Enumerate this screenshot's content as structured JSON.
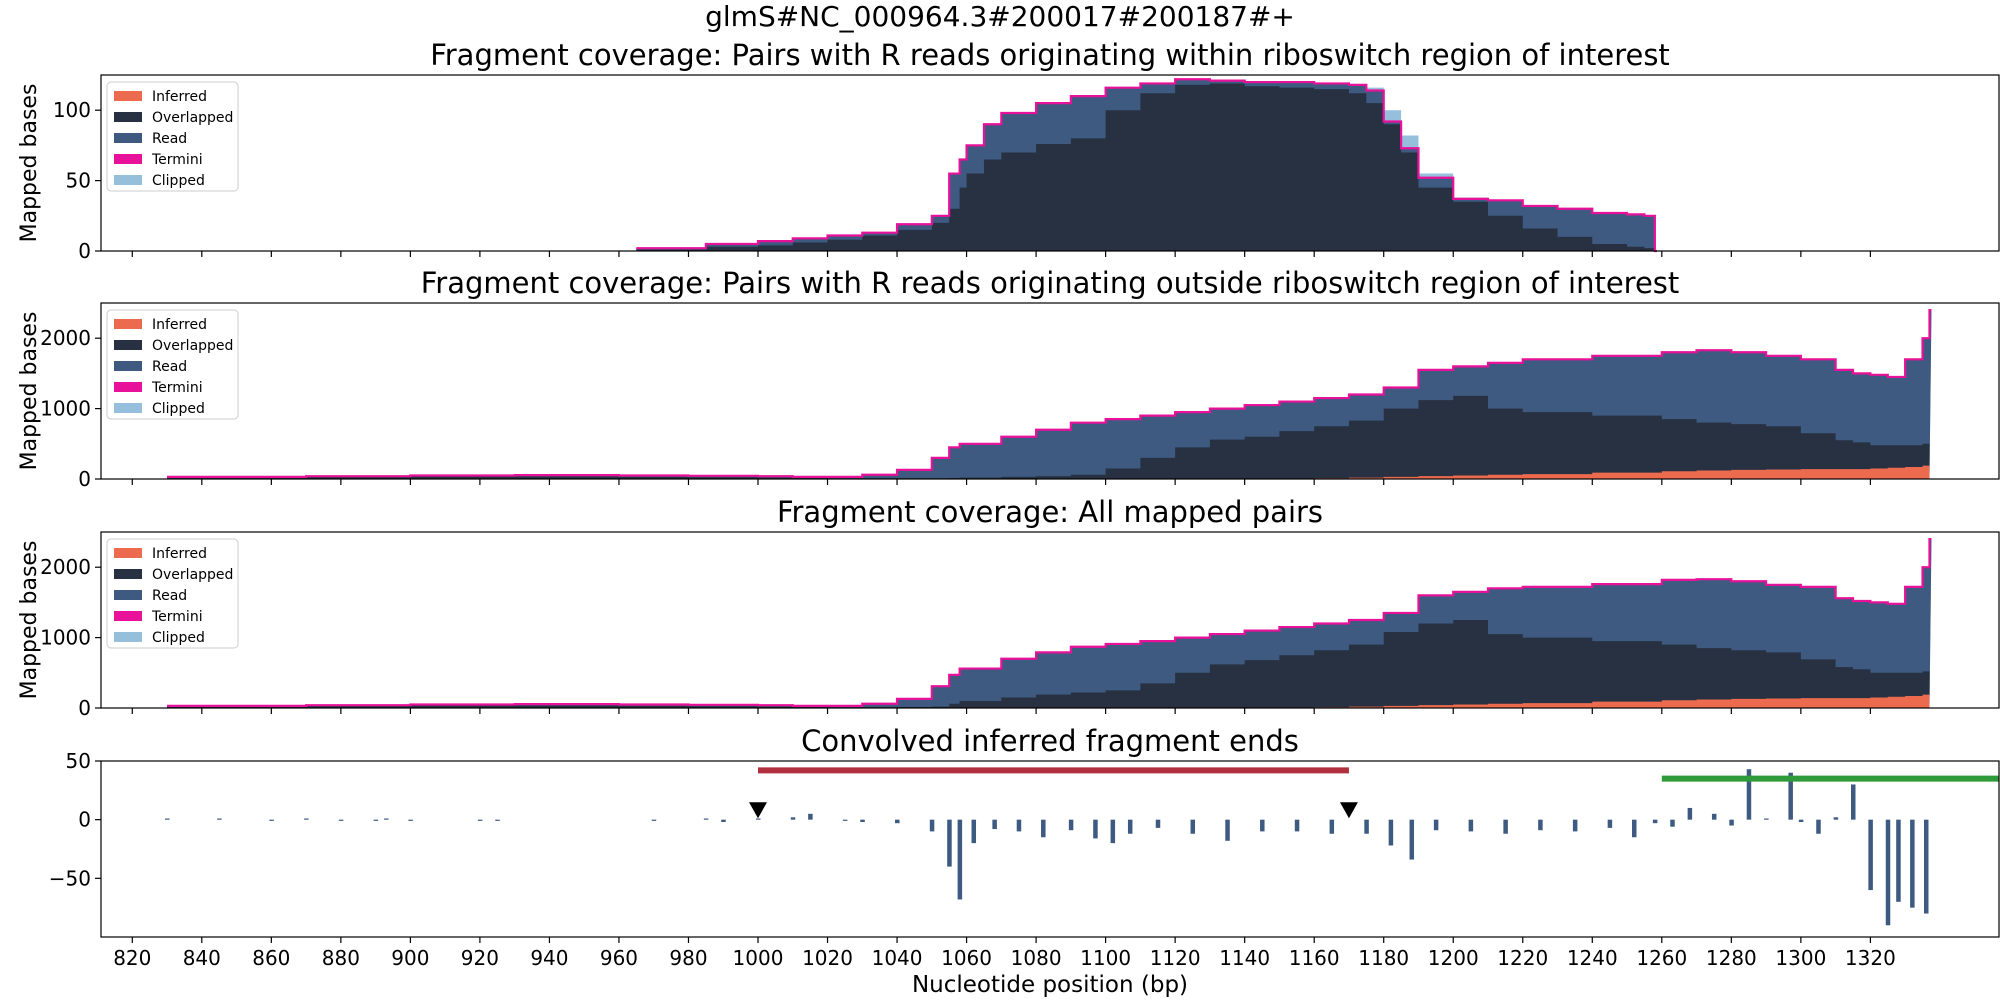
{
  "suptitle": "glmS#NC_000964.3#200017#200187#+",
  "colors": {
    "inferred": "#ec6b4e",
    "overlapped": "#273142",
    "read": "#3e5a80",
    "termini": "#e8119a",
    "clipped": "#96bfdb",
    "convolved": "#3e5a80",
    "riboswitch_bar": "#b0303f",
    "green_bar": "#2e9a3a",
    "marker": "#000000"
  },
  "legend": [
    "Inferred",
    "Overlapped",
    "Read",
    "Termini",
    "Clipped"
  ],
  "xaxis": {
    "label": "Nucleotide position (bp)",
    "range": [
      811,
      1357
    ],
    "ticks": [
      820,
      840,
      860,
      880,
      900,
      920,
      940,
      960,
      980,
      1000,
      1020,
      1040,
      1060,
      1080,
      1100,
      1120,
      1140,
      1160,
      1180,
      1200,
      1220,
      1240,
      1260,
      1280,
      1300,
      1320
    ]
  },
  "chart_data": [
    {
      "type": "area",
      "title": "Fragment coverage: Pairs with R reads originating within riboswitch region of interest",
      "ylabel": "Mapped bases",
      "ylim": [
        0,
        125
      ],
      "yticks": [
        0,
        50,
        100
      ],
      "legend_position": "upper-left",
      "x": [
        965,
        985,
        1000,
        1010,
        1020,
        1030,
        1040,
        1050,
        1055,
        1058,
        1060,
        1065,
        1070,
        1080,
        1090,
        1100,
        1110,
        1120,
        1130,
        1140,
        1150,
        1160,
        1170,
        1175,
        1180,
        1185,
        1190,
        1200,
        1210,
        1220,
        1230,
        1240,
        1250,
        1255,
        1258
      ],
      "series": [
        {
          "name": "Overlapped",
          "values": [
            1,
            3,
            4,
            6,
            8,
            11,
            15,
            20,
            30,
            45,
            55,
            65,
            70,
            76,
            80,
            100,
            112,
            118,
            119,
            117,
            116,
            115,
            112,
            105,
            90,
            70,
            45,
            35,
            25,
            16,
            10,
            5,
            3,
            2,
            0
          ]
        },
        {
          "name": "Read",
          "values": [
            2,
            5,
            7,
            9,
            11,
            13,
            19,
            25,
            55,
            65,
            75,
            90,
            98,
            105,
            110,
            116,
            119,
            122,
            121,
            120,
            120,
            119,
            118,
            114,
            92,
            73,
            52,
            37,
            36,
            32,
            30,
            27,
            26,
            25,
            0
          ]
        },
        {
          "name": "Clipped",
          "values": [
            2,
            5,
            7,
            9,
            11,
            13,
            19,
            25,
            55,
            65,
            75,
            90,
            98,
            105,
            110,
            116,
            119,
            122,
            121,
            120,
            120,
            119,
            118,
            116,
            100,
            82,
            55,
            38,
            36,
            32,
            30,
            27,
            26,
            25,
            0
          ]
        }
      ]
    },
    {
      "type": "area",
      "title": "Fragment coverage: Pairs with R reads originating outside riboswitch region of interest",
      "ylabel": "Mapped bases",
      "ylim": [
        0,
        2500
      ],
      "yticks": [
        0,
        1000,
        2000
      ],
      "legend_position": "upper-left",
      "x": [
        830,
        870,
        900,
        930,
        960,
        980,
        1000,
        1010,
        1020,
        1030,
        1040,
        1050,
        1055,
        1058,
        1070,
        1080,
        1090,
        1100,
        1110,
        1120,
        1130,
        1140,
        1150,
        1160,
        1170,
        1180,
        1190,
        1200,
        1210,
        1220,
        1240,
        1260,
        1270,
        1280,
        1290,
        1300,
        1310,
        1315,
        1320,
        1325,
        1330,
        1335,
        1337
      ],
      "series": [
        {
          "name": "Inferred",
          "values": [
            0,
            0,
            0,
            0,
            0,
            0,
            0,
            0,
            0,
            0,
            0,
            0,
            0,
            0,
            0,
            0,
            0,
            0,
            0,
            0,
            0,
            0,
            0,
            10,
            20,
            30,
            40,
            50,
            60,
            70,
            90,
            110,
            120,
            130,
            135,
            140,
            140,
            140,
            150,
            160,
            170,
            190,
            0
          ]
        },
        {
          "name": "Overlapped",
          "values": [
            20,
            30,
            35,
            35,
            30,
            25,
            20,
            15,
            10,
            10,
            10,
            10,
            15,
            20,
            30,
            40,
            60,
            150,
            300,
            450,
            560,
            600,
            680,
            750,
            830,
            1000,
            1120,
            1180,
            1000,
            950,
            900,
            850,
            800,
            780,
            750,
            650,
            550,
            520,
            480,
            480,
            480,
            500,
            0
          ]
        },
        {
          "name": "Read",
          "values": [
            30,
            40,
            50,
            55,
            50,
            45,
            40,
            30,
            30,
            60,
            130,
            300,
            450,
            500,
            600,
            700,
            800,
            850,
            900,
            950,
            1000,
            1050,
            1100,
            1150,
            1200,
            1300,
            1550,
            1600,
            1650,
            1700,
            1750,
            1800,
            1830,
            1800,
            1750,
            1700,
            1550,
            1500,
            1480,
            1450,
            1700,
            2000,
            2400
          ]
        },
        {
          "name": "Clipped",
          "values": [
            30,
            40,
            50,
            55,
            50,
            45,
            40,
            30,
            30,
            60,
            130,
            300,
            450,
            500,
            600,
            700,
            800,
            850,
            900,
            950,
            1000,
            1050,
            1100,
            1150,
            1200,
            1300,
            1550,
            1600,
            1650,
            1700,
            1750,
            1800,
            1830,
            1800,
            1750,
            1700,
            1550,
            1500,
            1480,
            1450,
            1700,
            2000,
            2400
          ]
        }
      ]
    },
    {
      "type": "area",
      "title": "Fragment coverage: All mapped pairs",
      "ylabel": "Mapped bases",
      "ylim": [
        0,
        2500
      ],
      "yticks": [
        0,
        1000,
        2000
      ],
      "legend_position": "upper-left",
      "x": [
        830,
        870,
        900,
        930,
        960,
        980,
        1000,
        1010,
        1020,
        1030,
        1040,
        1050,
        1055,
        1058,
        1070,
        1080,
        1090,
        1100,
        1110,
        1120,
        1130,
        1140,
        1150,
        1160,
        1170,
        1180,
        1190,
        1200,
        1210,
        1220,
        1240,
        1260,
        1270,
        1280,
        1290,
        1300,
        1310,
        1315,
        1320,
        1325,
        1330,
        1335,
        1337
      ],
      "series": [
        {
          "name": "Inferred",
          "values": [
            0,
            0,
            0,
            0,
            0,
            0,
            0,
            0,
            0,
            0,
            0,
            0,
            0,
            0,
            0,
            0,
            0,
            0,
            0,
            0,
            0,
            0,
            0,
            10,
            20,
            30,
            40,
            50,
            60,
            70,
            90,
            110,
            120,
            130,
            135,
            140,
            140,
            140,
            150,
            160,
            170,
            190,
            0
          ]
        },
        {
          "name": "Overlapped",
          "values": [
            20,
            30,
            35,
            35,
            30,
            25,
            20,
            15,
            10,
            10,
            15,
            20,
            60,
            100,
            150,
            190,
            220,
            250,
            350,
            500,
            620,
            680,
            750,
            820,
            900,
            1080,
            1200,
            1250,
            1050,
            1000,
            950,
            900,
            850,
            820,
            790,
            690,
            580,
            550,
            500,
            500,
            500,
            520,
            0
          ]
        },
        {
          "name": "Read",
          "values": [
            30,
            40,
            50,
            55,
            50,
            45,
            40,
            30,
            30,
            60,
            130,
            310,
            470,
            560,
            700,
            790,
            870,
            910,
            950,
            1000,
            1050,
            1100,
            1150,
            1200,
            1250,
            1350,
            1600,
            1650,
            1700,
            1720,
            1760,
            1820,
            1830,
            1800,
            1750,
            1720,
            1560,
            1520,
            1500,
            1480,
            1720,
            2000,
            2400
          ]
        },
        {
          "name": "Clipped",
          "values": [
            30,
            40,
            50,
            55,
            50,
            45,
            40,
            30,
            30,
            60,
            130,
            310,
            470,
            560,
            700,
            790,
            870,
            910,
            950,
            1000,
            1050,
            1100,
            1150,
            1200,
            1250,
            1350,
            1600,
            1650,
            1700,
            1720,
            1760,
            1820,
            1830,
            1800,
            1750,
            1720,
            1560,
            1520,
            1500,
            1480,
            1720,
            2000,
            2400
          ]
        }
      ]
    },
    {
      "type": "bar",
      "title": "Convolved inferred fragment ends",
      "ylim": [
        -100,
        50
      ],
      "yticks": [
        -50,
        0,
        50
      ],
      "x": [
        830,
        845,
        860,
        870,
        880,
        890,
        893,
        900,
        920,
        925,
        970,
        985,
        990,
        1000,
        1010,
        1015,
        1025,
        1030,
        1040,
        1050,
        1055,
        1058,
        1062,
        1068,
        1075,
        1082,
        1090,
        1097,
        1102,
        1107,
        1115,
        1125,
        1135,
        1145,
        1155,
        1165,
        1175,
        1182,
        1188,
        1195,
        1205,
        1215,
        1225,
        1235,
        1245,
        1252,
        1258,
        1263,
        1268,
        1275,
        1280,
        1285,
        1290,
        1297,
        1300,
        1305,
        1310,
        1315,
        1320,
        1325,
        1328,
        1332,
        1336
      ],
      "values": [
        1,
        1,
        -1,
        1,
        -1,
        -1,
        1,
        -1,
        -1,
        -1,
        -1,
        1,
        -2,
        1,
        2,
        5,
        -1,
        -2,
        -3,
        -10,
        -40,
        -68,
        -20,
        -8,
        -10,
        -15,
        -9,
        -16,
        -20,
        -12,
        -7,
        -12,
        -18,
        -10,
        -10,
        -12,
        -12,
        -22,
        -34,
        -9,
        -10,
        -12,
        -9,
        -10,
        -7,
        -15,
        -3,
        -6,
        10,
        5,
        -5,
        43,
        1,
        40,
        -2,
        -12,
        2,
        30,
        -60,
        -90,
        -70,
        -75,
        -80
      ],
      "riboswitch_region": [
        1000,
        1170
      ],
      "green_region": [
        1260,
        1357
      ],
      "markers": [
        1000,
        1170
      ]
    }
  ]
}
